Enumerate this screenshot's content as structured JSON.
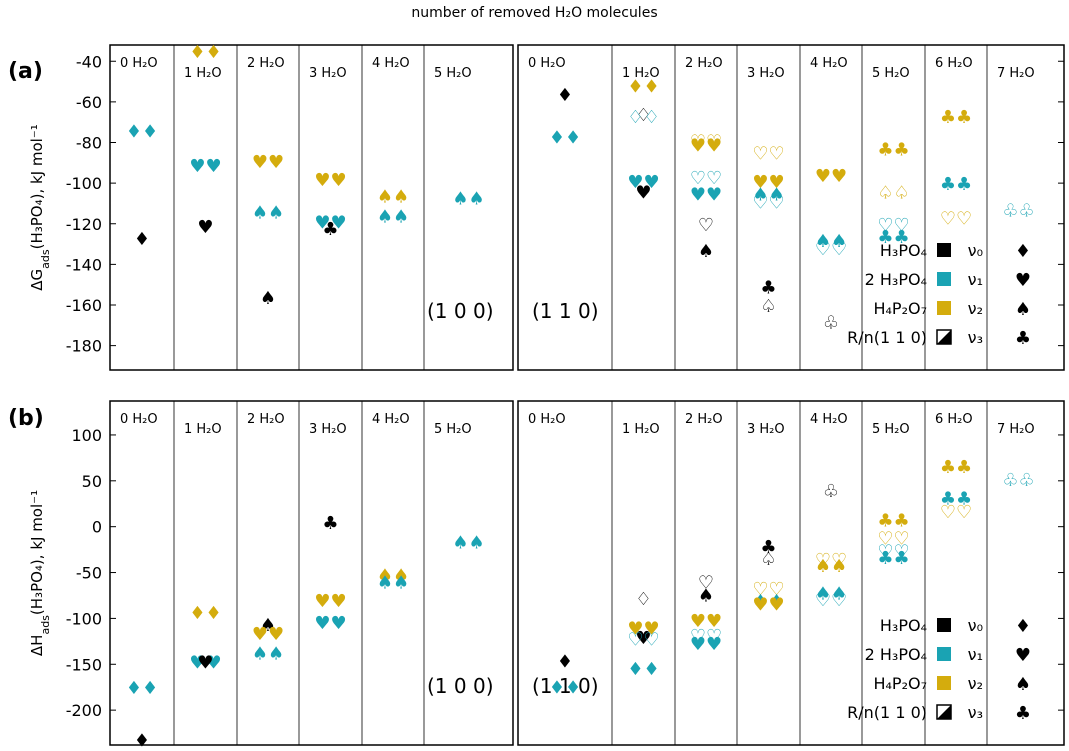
{
  "title": "number of removed H₂O molecules",
  "colors": {
    "black": "#000000",
    "teal": "#1aa3b3",
    "gold": "#d4ac0d"
  },
  "legend": {
    "series": [
      {
        "label": "H₃PO₄",
        "color": "black",
        "box": "filled"
      },
      {
        "label": "2 H₃PO₄",
        "color": "teal",
        "box": "filled"
      },
      {
        "label": "H₄P₂O₇",
        "color": "gold",
        "box": "filled"
      },
      {
        "label": "R/n(1 1 0)",
        "color": "black",
        "box": "half"
      }
    ],
    "markers": [
      {
        "label": "ν₀",
        "marker": "diamond"
      },
      {
        "label": "ν₁",
        "marker": "heart"
      },
      {
        "label": "ν₂",
        "marker": "spade"
      },
      {
        "label": "ν₃",
        "marker": "club"
      }
    ]
  },
  "chart_data": [
    {
      "type": "scatter",
      "panel": "(a)",
      "ylabel": "ΔG_ads(H₃PO₄), kJ mol⁻¹",
      "ylim": [
        -192,
        -32
      ],
      "yticks": [
        -40,
        -60,
        -80,
        -100,
        -120,
        -140,
        -160,
        -180
      ],
      "facets": [
        {
          "surface": "(1 0 0)",
          "columns": [
            "0 H₂O",
            "1 H₂O",
            "2 H₂O",
            "3 H₂O",
            "4 H₂O",
            "5 H₂O"
          ],
          "points": [
            {
              "col": 0,
              "y": -74,
              "marker": "diamond",
              "color": "teal",
              "n": 2
            },
            {
              "col": 0,
              "y": -127,
              "marker": "diamond",
              "color": "black",
              "n": 1
            },
            {
              "col": 1,
              "y": -35,
              "marker": "diamond",
              "color": "gold",
              "n": 2
            },
            {
              "col": 1,
              "y": -91,
              "marker": "heart",
              "color": "teal",
              "n": 2
            },
            {
              "col": 1,
              "y": -121,
              "marker": "heart",
              "color": "black",
              "n": 1
            },
            {
              "col": 2,
              "y": -89,
              "marker": "heart",
              "color": "gold",
              "n": 2
            },
            {
              "col": 2,
              "y": -114,
              "marker": "spade",
              "color": "teal",
              "n": 2
            },
            {
              "col": 2,
              "y": -156,
              "marker": "spade",
              "color": "black",
              "n": 1
            },
            {
              "col": 3,
              "y": -98,
              "marker": "heart",
              "color": "gold",
              "n": 2
            },
            {
              "col": 3,
              "y": -119,
              "marker": "heart",
              "color": "teal",
              "n": 2
            },
            {
              "col": 3,
              "y": -122,
              "marker": "club",
              "color": "black",
              "n": 1
            },
            {
              "col": 4,
              "y": -106,
              "marker": "spade",
              "color": "gold",
              "n": 2
            },
            {
              "col": 4,
              "y": -116,
              "marker": "spade",
              "color": "teal",
              "n": 2
            },
            {
              "col": 5,
              "y": -107,
              "marker": "spade",
              "color": "teal",
              "n": 2
            }
          ]
        },
        {
          "surface": "(1 1 0)",
          "columns": [
            "0 H₂O",
            "1 H₂O",
            "2 H₂O",
            "3 H₂O",
            "4 H₂O",
            "5 H₂O",
            "6 H₂O",
            "7 H₂O"
          ],
          "points": [
            {
              "col": 0,
              "y": -56,
              "marker": "diamond",
              "color": "black",
              "n": 1
            },
            {
              "col": 0,
              "y": -77,
              "marker": "diamond",
              "color": "teal",
              "n": 2
            },
            {
              "col": 1,
              "y": -52,
              "marker": "diamond",
              "color": "gold",
              "n": 2
            },
            {
              "col": 1,
              "y": -66,
              "marker": "diamond",
              "color": "black",
              "n": 1,
              "open": true
            },
            {
              "col": 1,
              "y": -67,
              "marker": "diamond",
              "color": "teal",
              "n": 2,
              "open": true
            },
            {
              "col": 1,
              "y": -99,
              "marker": "heart",
              "color": "teal",
              "n": 2
            },
            {
              "col": 1,
              "y": -104,
              "marker": "heart",
              "color": "black",
              "n": 1
            },
            {
              "col": 2,
              "y": -79,
              "marker": "heart",
              "color": "gold",
              "n": 2,
              "open": true
            },
            {
              "col": 2,
              "y": -81,
              "marker": "heart",
              "color": "gold",
              "n": 2
            },
            {
              "col": 2,
              "y": -97,
              "marker": "heart",
              "color": "teal",
              "n": 2,
              "open": true
            },
            {
              "col": 2,
              "y": -105,
              "marker": "heart",
              "color": "teal",
              "n": 2
            },
            {
              "col": 2,
              "y": -120,
              "marker": "heart",
              "color": "black",
              "n": 1,
              "open": true
            },
            {
              "col": 2,
              "y": -133,
              "marker": "spade",
              "color": "black",
              "n": 1
            },
            {
              "col": 3,
              "y": -85,
              "marker": "heart",
              "color": "gold",
              "n": 2,
              "open": true
            },
            {
              "col": 3,
              "y": -99,
              "marker": "heart",
              "color": "gold",
              "n": 2
            },
            {
              "col": 3,
              "y": -105,
              "marker": "spade",
              "color": "teal",
              "n": 2
            },
            {
              "col": 3,
              "y": -109,
              "marker": "heart",
              "color": "teal",
              "n": 2,
              "open": true
            },
            {
              "col": 3,
              "y": -151,
              "marker": "club",
              "color": "black",
              "n": 1
            },
            {
              "col": 3,
              "y": -160,
              "marker": "spade",
              "color": "black",
              "n": 1,
              "open": true
            },
            {
              "col": 4,
              "y": -96,
              "marker": "heart",
              "color": "gold",
              "n": 2
            },
            {
              "col": 4,
              "y": -128,
              "marker": "spade",
              "color": "teal",
              "n": 2
            },
            {
              "col": 4,
              "y": -132,
              "marker": "heart",
              "color": "teal",
              "n": 2,
              "open": true
            },
            {
              "col": 4,
              "y": -168,
              "marker": "club",
              "color": "black",
              "n": 1,
              "open": true
            },
            {
              "col": 5,
              "y": -83,
              "marker": "club",
              "color": "gold",
              "n": 2
            },
            {
              "col": 5,
              "y": -104,
              "marker": "spade",
              "color": "gold",
              "n": 2,
              "open": true
            },
            {
              "col": 5,
              "y": -120,
              "marker": "heart",
              "color": "teal",
              "n": 2,
              "open": true
            },
            {
              "col": 5,
              "y": -126,
              "marker": "club",
              "color": "teal",
              "n": 2
            },
            {
              "col": 6,
              "y": -67,
              "marker": "club",
              "color": "gold",
              "n": 2
            },
            {
              "col": 6,
              "y": -100,
              "marker": "club",
              "color": "teal",
              "n": 2
            },
            {
              "col": 6,
              "y": -117,
              "marker": "heart",
              "color": "gold",
              "n": 2,
              "open": true
            },
            {
              "col": 7,
              "y": -113,
              "marker": "club",
              "color": "teal",
              "n": 2,
              "open": true
            }
          ]
        }
      ]
    },
    {
      "type": "scatter",
      "panel": "(b)",
      "ylabel": "ΔH_ads(H₃PO₄), kJ mol⁻¹",
      "ylim": [
        -238,
        137
      ],
      "yticks": [
        100,
        50,
        0,
        -50,
        -100,
        -150,
        -200
      ],
      "facets": [
        {
          "surface": "(1 0 0)",
          "columns": [
            "0 H₂O",
            "1 H₂O",
            "2 H₂O",
            "3 H₂O",
            "4 H₂O",
            "5 H₂O"
          ],
          "points": [
            {
              "col": 0,
              "y": -175,
              "marker": "diamond",
              "color": "teal",
              "n": 2
            },
            {
              "col": 0,
              "y": -232,
              "marker": "diamond",
              "color": "black",
              "n": 1
            },
            {
              "col": 1,
              "y": -93,
              "marker": "diamond",
              "color": "gold",
              "n": 2
            },
            {
              "col": 1,
              "y": -147,
              "marker": "heart",
              "color": "teal",
              "n": 2
            },
            {
              "col": 1,
              "y": -147,
              "marker": "heart",
              "color": "black",
              "n": 1
            },
            {
              "col": 2,
              "y": -106,
              "marker": "spade",
              "color": "black",
              "n": 1
            },
            {
              "col": 2,
              "y": -116,
              "marker": "heart",
              "color": "gold",
              "n": 2
            },
            {
              "col": 2,
              "y": -137,
              "marker": "spade",
              "color": "teal",
              "n": 2
            },
            {
              "col": 3,
              "y": 5,
              "marker": "club",
              "color": "black",
              "n": 1
            },
            {
              "col": 3,
              "y": -80,
              "marker": "heart",
              "color": "gold",
              "n": 2
            },
            {
              "col": 3,
              "y": -104,
              "marker": "heart",
              "color": "teal",
              "n": 2
            },
            {
              "col": 4,
              "y": -52,
              "marker": "spade",
              "color": "gold",
              "n": 2
            },
            {
              "col": 4,
              "y": -60,
              "marker": "spade",
              "color": "teal",
              "n": 2
            },
            {
              "col": 5,
              "y": -16,
              "marker": "spade",
              "color": "teal",
              "n": 2
            }
          ]
        },
        {
          "surface": "(1 1 0)",
          "columns": [
            "0 H₂O",
            "1 H₂O",
            "2 H₂O",
            "3 H₂O",
            "4 H₂O",
            "5 H₂O",
            "6 H₂O",
            "7 H₂O"
          ],
          "points": [
            {
              "col": 0,
              "y": -146,
              "marker": "diamond",
              "color": "black",
              "n": 1
            },
            {
              "col": 0,
              "y": -174,
              "marker": "diamond",
              "color": "teal",
              "n": 2
            },
            {
              "col": 1,
              "y": -78,
              "marker": "diamond",
              "color": "black",
              "n": 1,
              "open": true
            },
            {
              "col": 1,
              "y": -110,
              "marker": "heart",
              "color": "gold",
              "n": 2
            },
            {
              "col": 1,
              "y": -120,
              "marker": "heart",
              "color": "black",
              "n": 1
            },
            {
              "col": 1,
              "y": -122,
              "marker": "heart",
              "color": "teal",
              "n": 2,
              "open": true
            },
            {
              "col": 1,
              "y": -154,
              "marker": "diamond",
              "color": "teal",
              "n": 2
            },
            {
              "col": 2,
              "y": -60,
              "marker": "heart",
              "color": "black",
              "n": 1,
              "open": true
            },
            {
              "col": 2,
              "y": -74,
              "marker": "spade",
              "color": "black",
              "n": 1
            },
            {
              "col": 2,
              "y": -102,
              "marker": "heart",
              "color": "gold",
              "n": 2
            },
            {
              "col": 2,
              "y": -118,
              "marker": "heart",
              "color": "teal",
              "n": 2,
              "open": true
            },
            {
              "col": 2,
              "y": -127,
              "marker": "heart",
              "color": "teal",
              "n": 2
            },
            {
              "col": 3,
              "y": -21,
              "marker": "club",
              "color": "black",
              "n": 1
            },
            {
              "col": 3,
              "y": -34,
              "marker": "spade",
              "color": "black",
              "n": 1,
              "open": true
            },
            {
              "col": 3,
              "y": -67,
              "marker": "heart",
              "color": "gold",
              "n": 2,
              "open": true
            },
            {
              "col": 3,
              "y": -80,
              "marker": "spade",
              "color": "teal",
              "n": 2
            },
            {
              "col": 3,
              "y": -84,
              "marker": "heart",
              "color": "gold",
              "n": 2
            },
            {
              "col": 4,
              "y": 40,
              "marker": "club",
              "color": "black",
              "n": 1,
              "open": true
            },
            {
              "col": 4,
              "y": -35,
              "marker": "heart",
              "color": "gold",
              "n": 2,
              "open": true
            },
            {
              "col": 4,
              "y": -42,
              "marker": "spade",
              "color": "gold",
              "n": 2
            },
            {
              "col": 4,
              "y": -72,
              "marker": "spade",
              "color": "teal",
              "n": 2
            },
            {
              "col": 4,
              "y": -79,
              "marker": "heart",
              "color": "teal",
              "n": 2,
              "open": true
            },
            {
              "col": 5,
              "y": 8,
              "marker": "club",
              "color": "gold",
              "n": 2
            },
            {
              "col": 5,
              "y": -12,
              "marker": "heart",
              "color": "gold",
              "n": 2,
              "open": true
            },
            {
              "col": 5,
              "y": -26,
              "marker": "heart",
              "color": "teal",
              "n": 2,
              "open": true
            },
            {
              "col": 5,
              "y": -33,
              "marker": "club",
              "color": "teal",
              "n": 2
            },
            {
              "col": 6,
              "y": 66,
              "marker": "club",
              "color": "gold",
              "n": 2
            },
            {
              "col": 6,
              "y": 32,
              "marker": "club",
              "color": "teal",
              "n": 2
            },
            {
              "col": 6,
              "y": 17,
              "marker": "heart",
              "color": "gold",
              "n": 2,
              "open": true
            },
            {
              "col": 7,
              "y": 52,
              "marker": "club",
              "color": "teal",
              "n": 2,
              "open": true
            }
          ]
        }
      ]
    }
  ]
}
